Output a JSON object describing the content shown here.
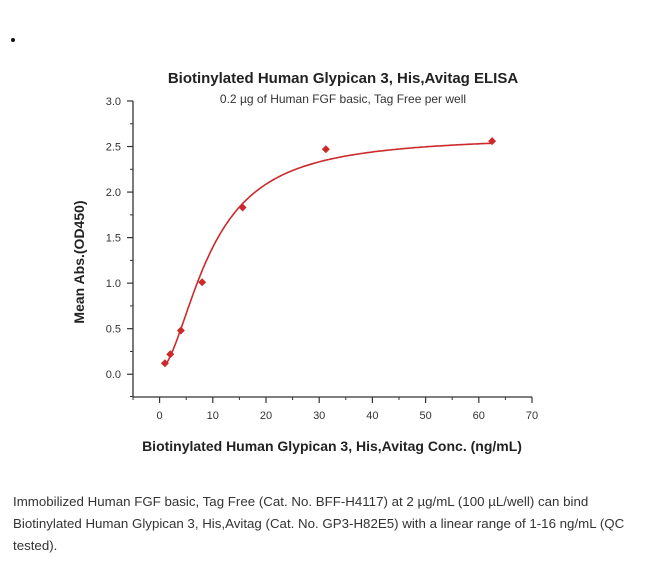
{
  "chart_data": {
    "type": "scatter",
    "title": "Biotinylated Human Glypican 3, His,Avitag ELISA",
    "subtitle": "0.2 µg of Human FGF basic, Tag Free per well",
    "xlabel": "Biotinylated Human Glypican 3, His,Avitag Conc. (ng/mL)",
    "ylabel": "Mean Abs.(OD450)",
    "xlim": [
      -5,
      70
    ],
    "ylim": [
      -0.25,
      3.0
    ],
    "x_ticks": [
      0,
      10,
      20,
      30,
      40,
      50,
      60,
      70
    ],
    "y_ticks": [
      "0.0",
      "0.5",
      "1.0",
      "1.5",
      "2.0",
      "2.5",
      "3.0"
    ],
    "grid": false,
    "series": [
      {
        "x": [
          1,
          2,
          4,
          8,
          15.6,
          31.25,
          62.5
        ],
        "y": [
          0.12,
          0.22,
          0.48,
          1.01,
          1.83,
          2.47,
          2.56
        ],
        "marker": "diamond",
        "fit_line": true
      }
    ],
    "color": "#cc2a2a"
  },
  "caption": "Immobilized Human FGF basic, Tag Free (Cat. No. BFF-H4117) at 2 µg/mL (100 µL/well) can bind Biotinylated Human Glypican 3, His,Avitag (Cat. No. GP3-H82E5) with a linear range of 1-16 ng/mL (QC tested)."
}
